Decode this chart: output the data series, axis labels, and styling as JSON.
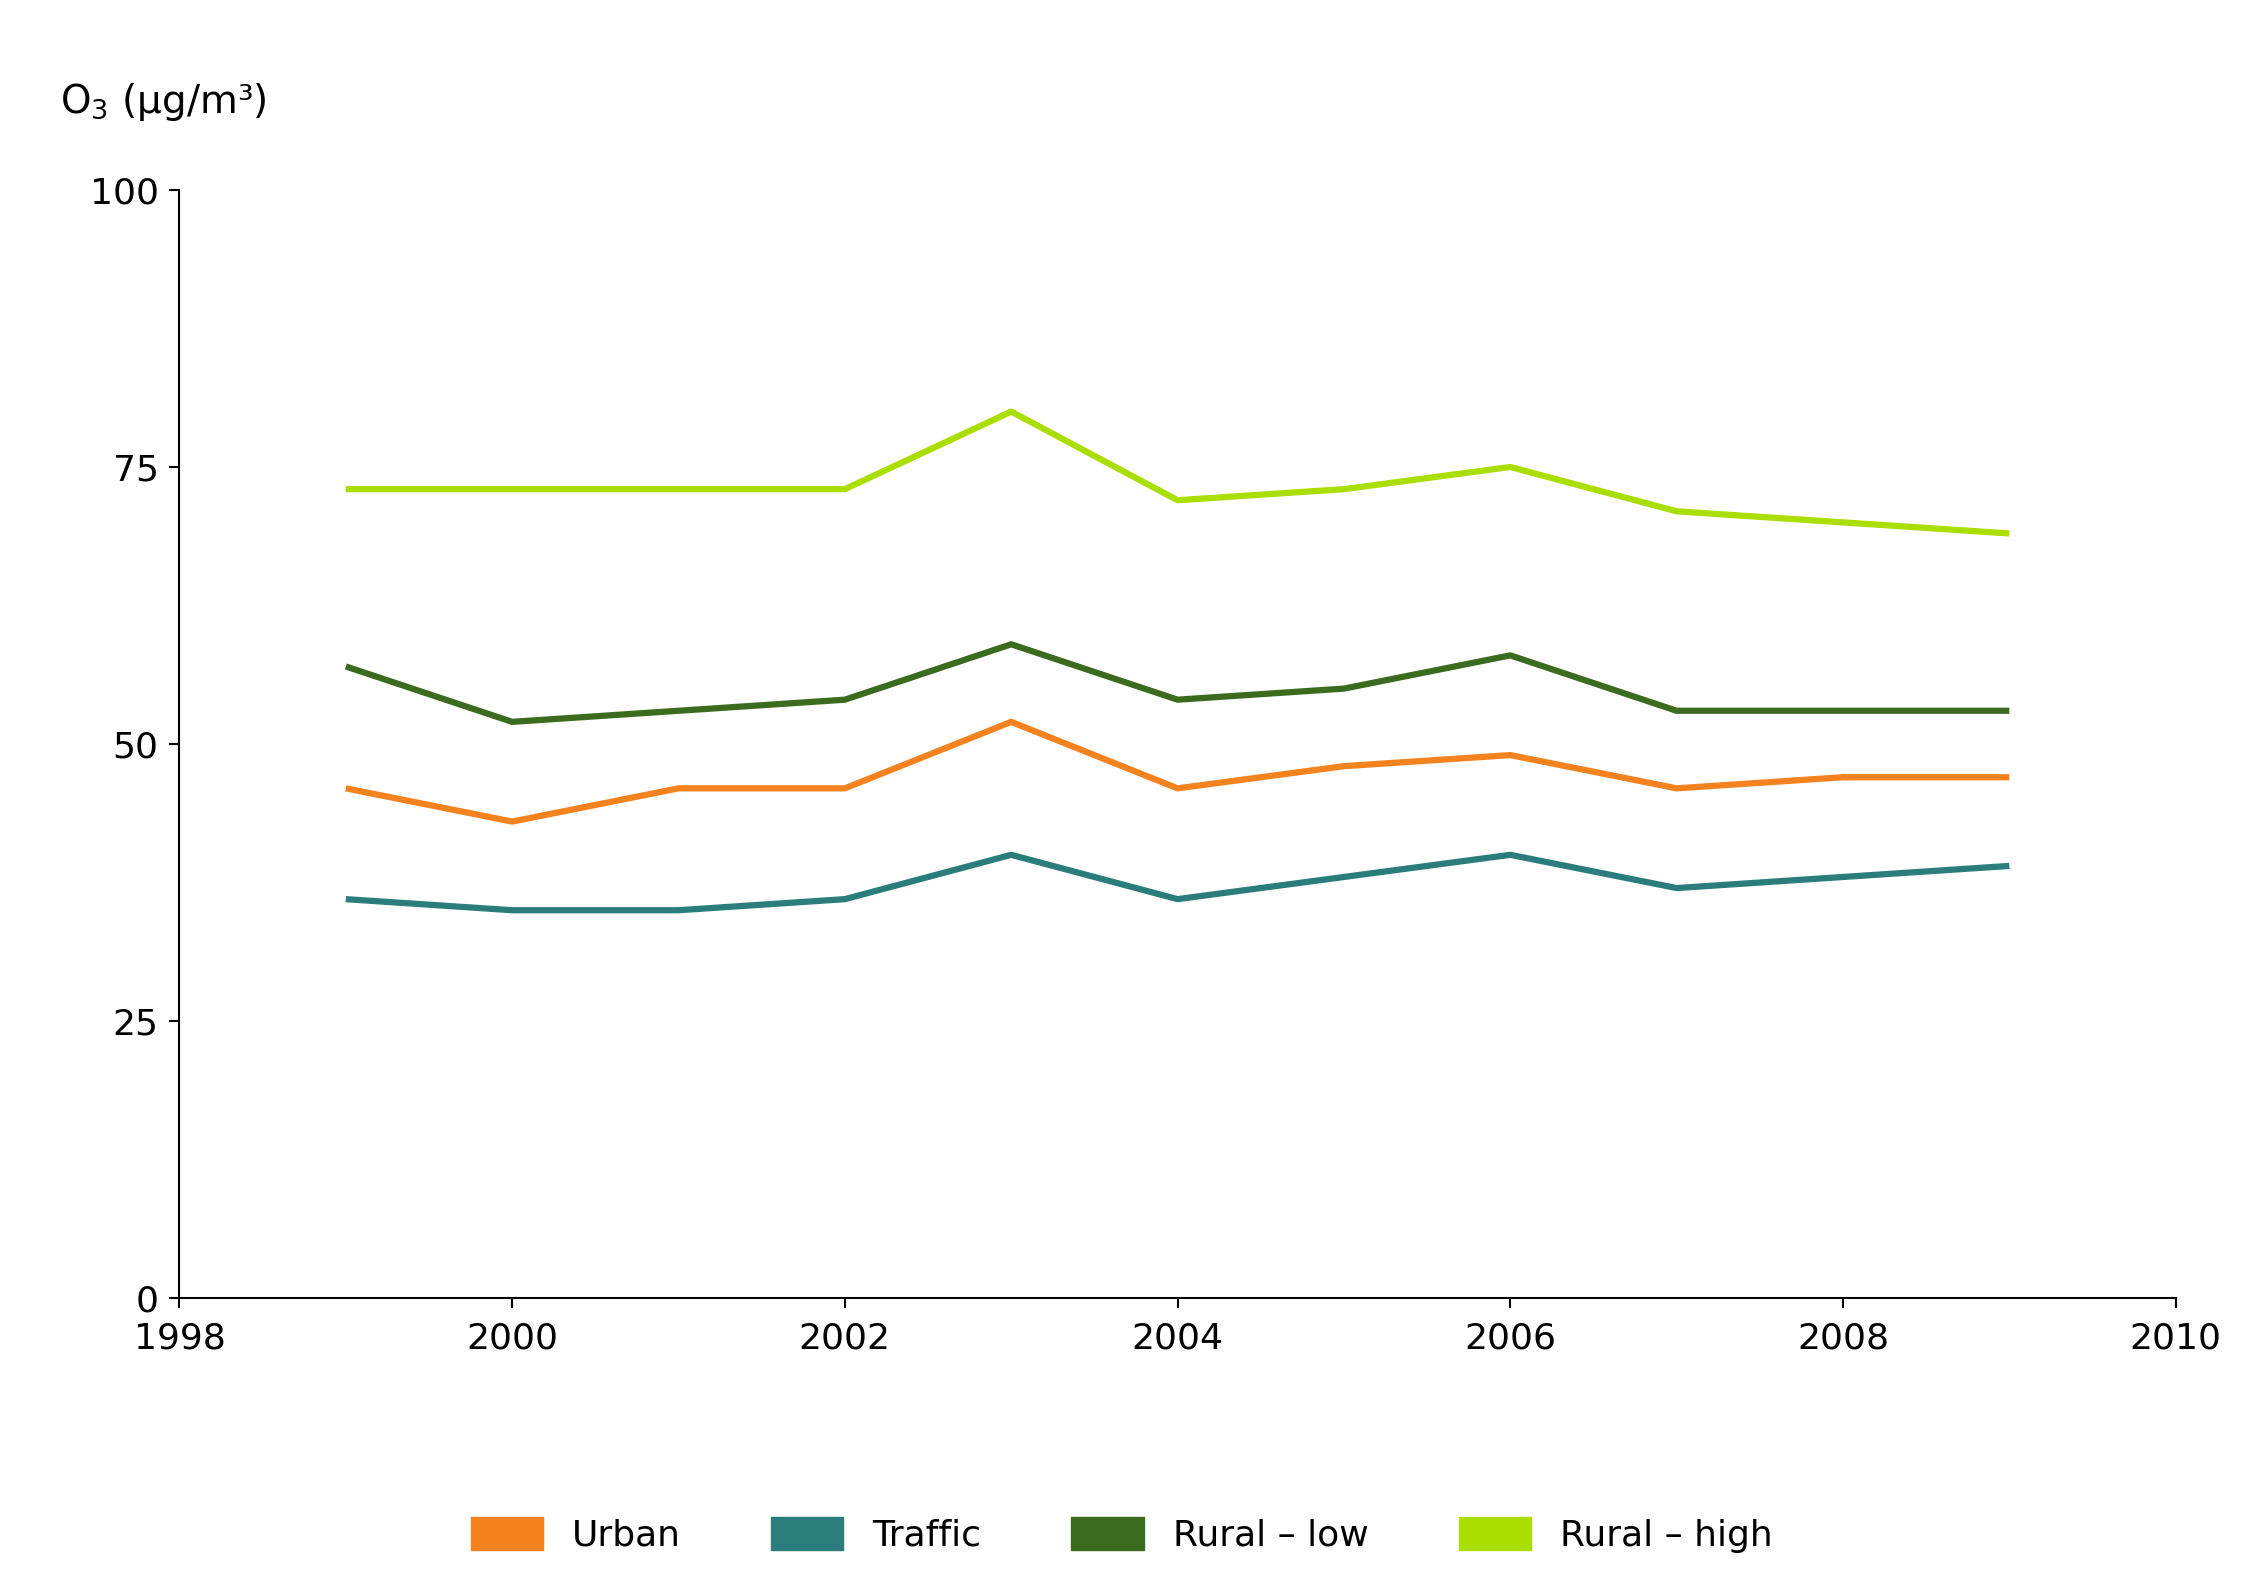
{
  "years": [
    1999,
    2000,
    2001,
    2002,
    2003,
    2004,
    2005,
    2006,
    2007,
    2008,
    2009
  ],
  "urban": [
    46,
    43,
    46,
    46,
    52,
    46,
    48,
    49,
    46,
    47,
    47
  ],
  "traffic": [
    36,
    35,
    35,
    36,
    40,
    36,
    38,
    40,
    37,
    38,
    39
  ],
  "rural_low": [
    57,
    52,
    53,
    54,
    59,
    54,
    55,
    58,
    53,
    53,
    53
  ],
  "rural_high": [
    73,
    73,
    73,
    73,
    80,
    72,
    73,
    75,
    71,
    70,
    69
  ],
  "colors": {
    "urban": "#F4821E",
    "traffic": "#2B7D7B",
    "rural_low": "#3A6B1F",
    "rural_high": "#AADD00"
  },
  "line_width": 4.5,
  "ylim": [
    0,
    100
  ],
  "xlim": [
    1998,
    2010
  ],
  "yticks": [
    0,
    25,
    50,
    75,
    100
  ],
  "xticks": [
    1998,
    2000,
    2002,
    2004,
    2006,
    2008,
    2010
  ],
  "legend_labels": [
    "Urban",
    "Traffic",
    "Rural – low",
    "Rural – high"
  ],
  "background_color": "#ffffff",
  "ylabel_text": "O",
  "ylabel_sub": "3",
  "ylabel_unit": " (μg/m³)",
  "ylabel_fontsize": 28,
  "tick_fontsize": 26,
  "legend_fontsize": 26
}
